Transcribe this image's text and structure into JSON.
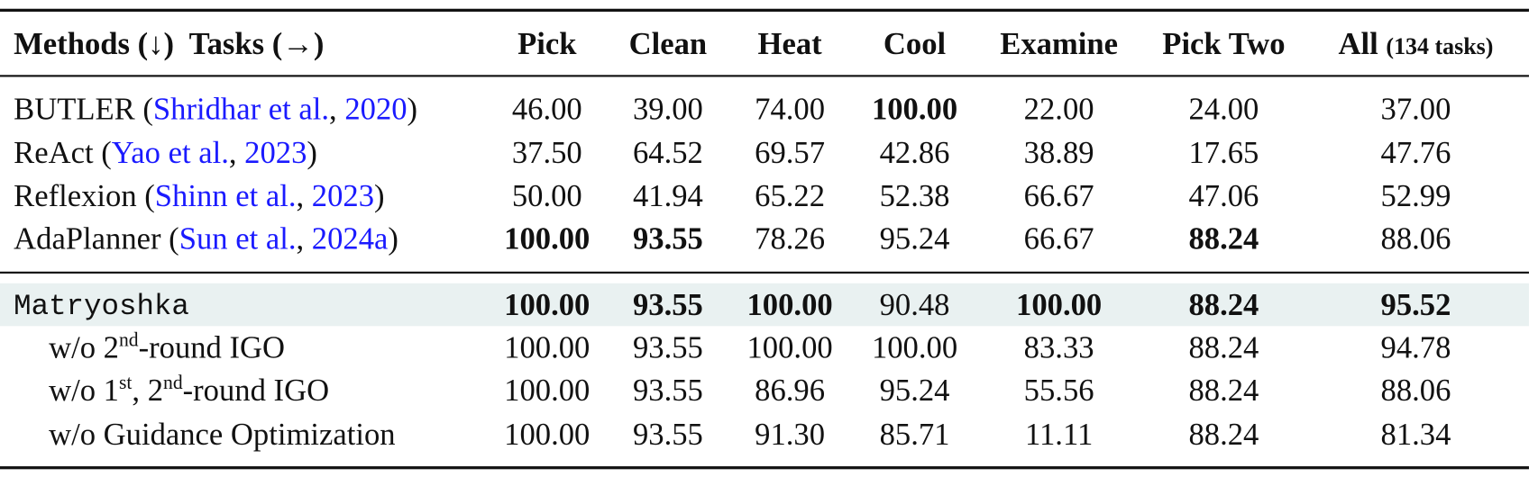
{
  "table": {
    "header": {
      "methods": "Methods (↓)  Tasks (→)",
      "columns": [
        "Pick",
        "Clean",
        "Heat",
        "Cool",
        "Examine",
        "Pick Two",
        "All"
      ],
      "all_note": "(134 tasks)"
    },
    "rows": [
      {
        "label": [
          {
            "text": "BUTLER ("
          },
          {
            "text": "Shridhar et al.",
            "style": "link"
          },
          {
            "text": ", "
          },
          {
            "text": "2020",
            "style": "link"
          },
          {
            "text": ")"
          }
        ],
        "cells": [
          "46.00",
          "39.00",
          "74.00",
          "100.00",
          "22.00",
          "24.00",
          "37.00"
        ],
        "bold": [
          3
        ]
      },
      {
        "label": [
          {
            "text": "ReAct ("
          },
          {
            "text": "Yao et al.",
            "style": "link"
          },
          {
            "text": ", "
          },
          {
            "text": "2023",
            "style": "link"
          },
          {
            "text": ")"
          }
        ],
        "cells": [
          "37.50",
          "64.52",
          "69.57",
          "42.86",
          "38.89",
          "17.65",
          "47.76"
        ],
        "bold": []
      },
      {
        "label": [
          {
            "text": "Reflexion ("
          },
          {
            "text": "Shinn et al.",
            "style": "link"
          },
          {
            "text": ", "
          },
          {
            "text": "2023",
            "style": "link"
          },
          {
            "text": ")"
          }
        ],
        "cells": [
          "50.00",
          "41.94",
          "65.22",
          "52.38",
          "66.67",
          "47.06",
          "52.99"
        ],
        "bold": []
      },
      {
        "label": [
          {
            "text": "AdaPlanner ("
          },
          {
            "text": "Sun et al.",
            "style": "link"
          },
          {
            "text": ", "
          },
          {
            "text": "2024a",
            "style": "link"
          },
          {
            "text": ")"
          }
        ],
        "cells": [
          "100.00",
          "93.55",
          "78.26",
          "95.24",
          "66.67",
          "88.24",
          "88.06"
        ],
        "bold": [
          0,
          1,
          5
        ]
      },
      {
        "label": [
          {
            "text": "Matryoshka",
            "style": "mono"
          }
        ],
        "cells": [
          "100.00",
          "93.55",
          "100.00",
          "90.48",
          "100.00",
          "88.24",
          "95.52"
        ],
        "bold": [
          0,
          1,
          2,
          4,
          5,
          6
        ],
        "highlight": true
      },
      {
        "label": [
          {
            "text": "w/o 2"
          },
          {
            "text": "nd",
            "style": "sup"
          },
          {
            "text": "-round IGO"
          }
        ],
        "cells": [
          "100.00",
          "93.55",
          "100.00",
          "100.00",
          "83.33",
          "88.24",
          "94.78"
        ],
        "bold": [],
        "indent": true
      },
      {
        "label": [
          {
            "text": "w/o 1"
          },
          {
            "text": "st",
            "style": "sup"
          },
          {
            "text": ", 2"
          },
          {
            "text": "nd",
            "style": "sup"
          },
          {
            "text": "-round IGO"
          }
        ],
        "cells": [
          "100.00",
          "93.55",
          "86.96",
          "95.24",
          "55.56",
          "88.24",
          "88.06"
        ],
        "bold": [],
        "indent": true
      },
      {
        "label": [
          {
            "text": "w/o Guidance Optimization"
          }
        ],
        "cells": [
          "100.00",
          "93.55",
          "91.30",
          "85.71",
          "11.11",
          "88.24",
          "81.34"
        ],
        "bold": [],
        "indent": true
      }
    ]
  }
}
